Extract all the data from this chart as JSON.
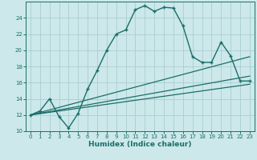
{
  "xlabel": "Humidex (Indice chaleur)",
  "background_color": "#cce8ea",
  "grid_color": "#aacdd0",
  "line_color": "#1a6e6a",
  "xlim": [
    -0.5,
    23.5
  ],
  "ylim": [
    10,
    26
  ],
  "x_ticks": [
    0,
    1,
    2,
    3,
    4,
    5,
    6,
    7,
    8,
    9,
    10,
    11,
    12,
    13,
    14,
    15,
    16,
    17,
    18,
    19,
    20,
    21,
    22,
    23
  ],
  "y_ticks": [
    10,
    12,
    14,
    16,
    18,
    20,
    22,
    24
  ],
  "main_x": [
    0,
    1,
    2,
    3,
    4,
    5,
    6,
    7,
    8,
    9,
    10,
    11,
    12,
    13,
    14,
    15,
    16,
    17,
    18,
    19,
    20,
    21,
    22,
    23
  ],
  "main_y": [
    12,
    12.5,
    14,
    11.8,
    10.4,
    12.2,
    15.2,
    17.5,
    20.0,
    22.0,
    22.5,
    25.0,
    25.5,
    24.8,
    25.3,
    25.2,
    23.0,
    19.2,
    18.5,
    18.5,
    21.0,
    19.3,
    16.2,
    16.2
  ],
  "line1_x": [
    0,
    23
  ],
  "line1_y": [
    12,
    19.2
  ],
  "line2_x": [
    0,
    23
  ],
  "line2_y": [
    12,
    16.8
  ],
  "line3_x": [
    0,
    23
  ],
  "line3_y": [
    12,
    15.8
  ]
}
